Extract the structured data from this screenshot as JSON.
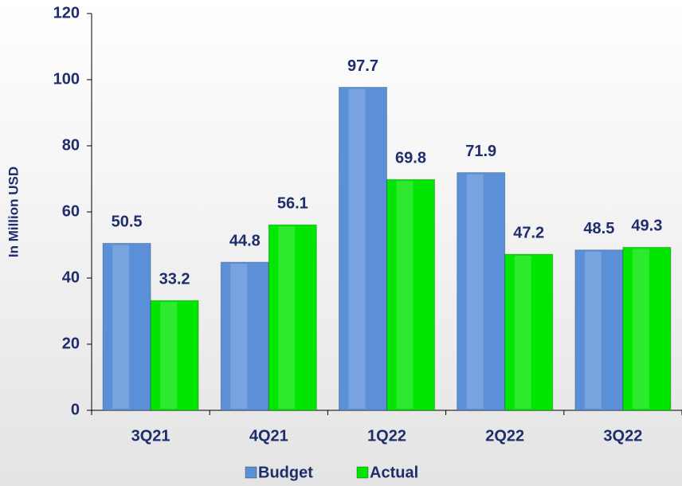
{
  "chart_data": {
    "type": "bar",
    "y_label": "In Million USD",
    "categories": [
      "3Q21",
      "4Q21",
      "1Q22",
      "2Q22",
      "3Q22"
    ],
    "series": [
      {
        "name": "Budget",
        "color": "#5b8fd8",
        "values": [
          50.5,
          44.8,
          97.7,
          71.9,
          48.5
        ]
      },
      {
        "name": "Actual",
        "color": "#00e600",
        "values": [
          33.2,
          56.1,
          69.8,
          47.2,
          49.3
        ]
      }
    ],
    "ylim": [
      0,
      120
    ],
    "yticks": [
      0,
      20,
      40,
      60,
      80,
      100,
      120
    ],
    "grid": false,
    "legend": "bottom"
  }
}
